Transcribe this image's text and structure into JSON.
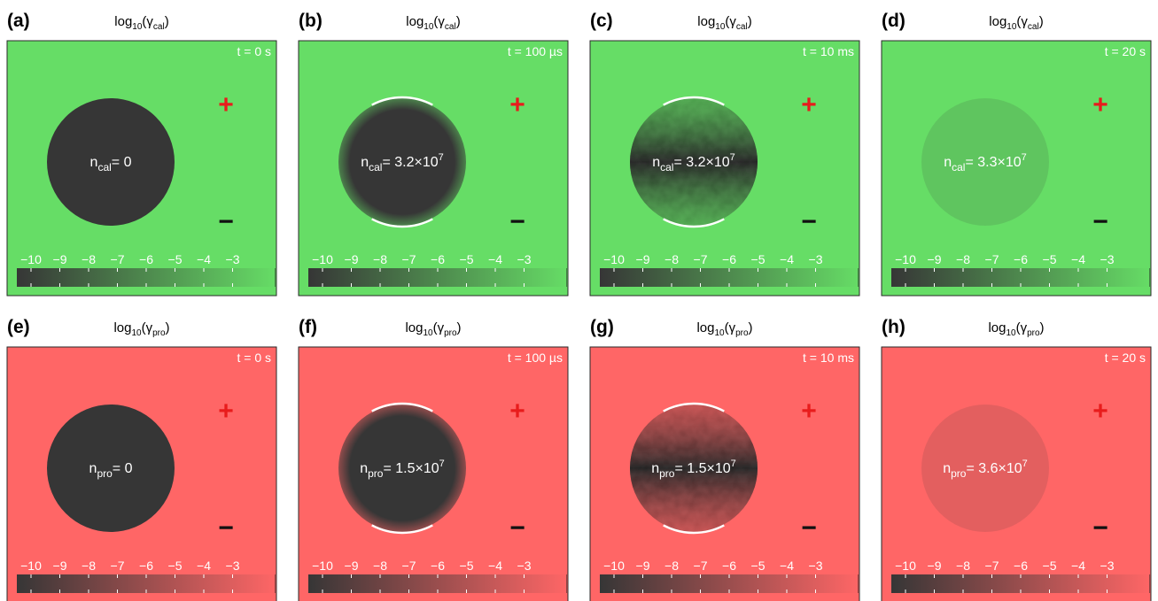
{
  "colors": {
    "calcium": "#66dd66",
    "protein": "#ff6666",
    "dark": "#363636",
    "plus": "#e81c1c",
    "minus": "#111111",
    "white": "#ffffff"
  },
  "colorbar": {
    "ticks": [
      "−10",
      "−9",
      "−8",
      "−7",
      "−6",
      "−5",
      "−4",
      "−3"
    ]
  },
  "electrodes": {
    "plus": "+",
    "minus": "−"
  },
  "rows": [
    {
      "species": "cal",
      "title_prefix": "log",
      "title_base": "10",
      "title_gamma": "(γ",
      "title_sub": "cal",
      "title_close": ")",
      "n_symbol": "n",
      "n_sub": "cal",
      "panels": [
        {
          "label": "(a)",
          "time": "t = 0 s",
          "n_value": "= 0",
          "n_exp": "",
          "stage": 0
        },
        {
          "label": "(b)",
          "time": "t = 100 µs",
          "n_value": "= 3.2×10",
          "n_exp": "7",
          "stage": 1
        },
        {
          "label": "(c)",
          "time": "t = 10 ms",
          "n_value": "= 3.2×10",
          "n_exp": "7",
          "stage": 2
        },
        {
          "label": "(d)",
          "time": "t = 20 s",
          "n_value": "= 3.3×10",
          "n_exp": "7",
          "stage": 3
        }
      ]
    },
    {
      "species": "pro",
      "title_prefix": "log",
      "title_base": "10",
      "title_gamma": "(γ",
      "title_sub": "pro",
      "title_close": ")",
      "n_symbol": "n",
      "n_sub": "pro",
      "panels": [
        {
          "label": "(e)",
          "time": "t = 0 s",
          "n_value": "= 0",
          "n_exp": "",
          "stage": 0
        },
        {
          "label": "(f)",
          "time": "t = 100 µs",
          "n_value": "= 1.5×10",
          "n_exp": "7",
          "stage": 1
        },
        {
          "label": "(g)",
          "time": "t = 10 ms",
          "n_value": "= 1.5×10",
          "n_exp": "7",
          "stage": 2
        },
        {
          "label": "(h)",
          "time": "t = 20 s",
          "n_value": "= 3.6×10",
          "n_exp": "7",
          "stage": 3
        }
      ]
    }
  ]
}
